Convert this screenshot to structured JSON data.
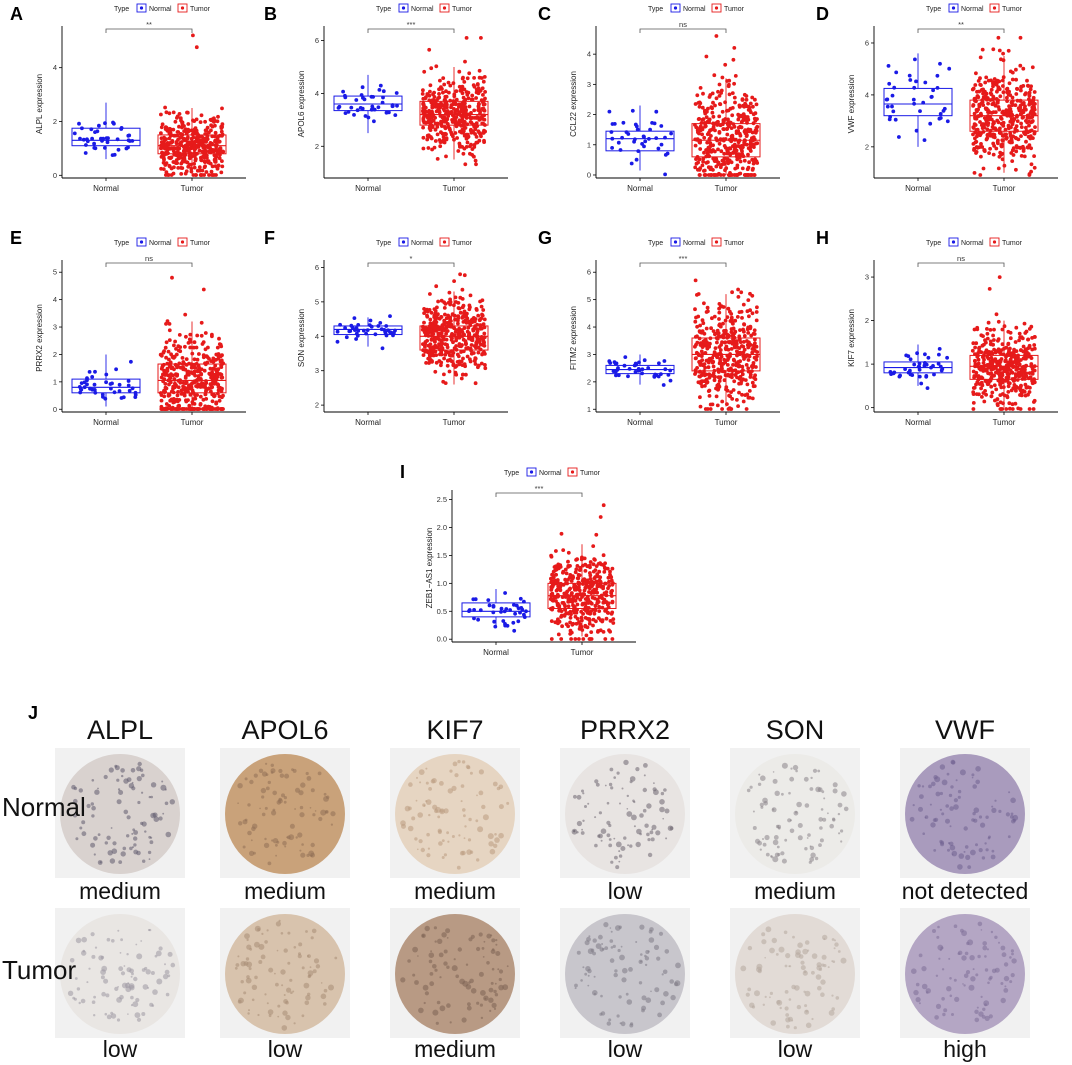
{
  "chart_data": [
    {
      "type": "boxplot",
      "panel": "A",
      "ylabel": "ALPL expression",
      "categories": [
        "Normal",
        "Tumor"
      ],
      "legend_title": "Type",
      "legend": [
        "Normal",
        "Tumor"
      ],
      "significance": "**",
      "ylim": [
        -0.1,
        5.4
      ],
      "yticks": [
        0,
        2,
        4
      ],
      "boxes": [
        {
          "group": "Normal",
          "q1": 1.1,
          "median": 1.3,
          "q3": 1.75,
          "whisker_low": 0.6,
          "whisker_high": 2.7,
          "n": 40
        },
        {
          "group": "Tumor",
          "q1": 0.8,
          "median": 1.1,
          "q3": 1.5,
          "whisker_low": 0.05,
          "whisker_high": 2.5,
          "n": 420,
          "max": 5.2
        }
      ]
    },
    {
      "type": "boxplot",
      "panel": "B",
      "ylabel": "APOL6 expression",
      "categories": [
        "Normal",
        "Tumor"
      ],
      "legend_title": "Type",
      "legend": [
        "Normal",
        "Tumor"
      ],
      "significance": "***",
      "ylim": [
        0.8,
        6.4
      ],
      "yticks": [
        2,
        4,
        6
      ],
      "boxes": [
        {
          "group": "Normal",
          "q1": 3.35,
          "median": 3.6,
          "q3": 3.9,
          "whisker_low": 2.5,
          "whisker_high": 4.7,
          "n": 40
        },
        {
          "group": "Tumor",
          "q1": 2.8,
          "median": 3.2,
          "q3": 3.7,
          "whisker_low": 1.5,
          "whisker_high": 5.0,
          "n": 420,
          "max": 6.1
        }
      ]
    },
    {
      "type": "boxplot",
      "panel": "C",
      "ylabel": "CCL22 expression",
      "categories": [
        "Normal",
        "Tumor"
      ],
      "legend_title": "Type",
      "legend": [
        "Normal",
        "Tumor"
      ],
      "significance": "ns",
      "ylim": [
        -0.1,
        4.8
      ],
      "yticks": [
        0,
        1,
        2,
        3,
        4
      ],
      "boxes": [
        {
          "group": "Normal",
          "q1": 0.8,
          "median": 1.2,
          "q3": 1.45,
          "whisker_low": 0.15,
          "whisker_high": 2.3,
          "n": 40
        },
        {
          "group": "Tumor",
          "q1": 0.6,
          "median": 1.15,
          "q3": 1.7,
          "whisker_low": 0.0,
          "whisker_high": 3.2,
          "n": 420,
          "max": 4.6
        }
      ]
    },
    {
      "type": "boxplot",
      "panel": "D",
      "ylabel": "VWF expression",
      "categories": [
        "Normal",
        "Tumor"
      ],
      "legend_title": "Type",
      "legend": [
        "Normal",
        "Tumor"
      ],
      "significance": "**",
      "ylim": [
        0.8,
        6.5
      ],
      "yticks": [
        2,
        4,
        6
      ],
      "boxes": [
        {
          "group": "Normal",
          "q1": 3.2,
          "median": 3.65,
          "q3": 4.25,
          "whisker_low": 2.0,
          "whisker_high": 5.6,
          "n": 40
        },
        {
          "group": "Tumor",
          "q1": 2.6,
          "median": 3.2,
          "q3": 3.8,
          "whisker_low": 1.0,
          "whisker_high": 5.5,
          "n": 420,
          "max": 6.2
        }
      ]
    },
    {
      "type": "boxplot",
      "panel": "E",
      "ylabel": "PRRX2 expression",
      "categories": [
        "Normal",
        "Tumor"
      ],
      "legend_title": "Type",
      "legend": [
        "Normal",
        "Tumor"
      ],
      "significance": "ns",
      "ylim": [
        -0.1,
        5.3
      ],
      "yticks": [
        0,
        1,
        2,
        3,
        4,
        5
      ],
      "boxes": [
        {
          "group": "Normal",
          "q1": 0.6,
          "median": 0.8,
          "q3": 1.1,
          "whisker_low": 0.1,
          "whisker_high": 2.0,
          "n": 40
        },
        {
          "group": "Tumor",
          "q1": 0.6,
          "median": 1.05,
          "q3": 1.65,
          "whisker_low": 0.0,
          "whisker_high": 3.2,
          "n": 420,
          "max": 4.8
        }
      ]
    },
    {
      "type": "boxplot",
      "panel": "F",
      "ylabel": "SON expression",
      "categories": [
        "Normal",
        "Tumor"
      ],
      "legend_title": "Type",
      "legend": [
        "Normal",
        "Tumor"
      ],
      "significance": "*",
      "ylim": [
        1.8,
        6.1
      ],
      "yticks": [
        2,
        3,
        4,
        5,
        6
      ],
      "boxes": [
        {
          "group": "Normal",
          "q1": 4.05,
          "median": 4.2,
          "q3": 4.3,
          "whisker_low": 3.7,
          "whisker_high": 4.55,
          "n": 40
        },
        {
          "group": "Tumor",
          "q1": 3.6,
          "median": 4.0,
          "q3": 4.3,
          "whisker_low": 2.6,
          "whisker_high": 5.3,
          "n": 420,
          "max": 5.8
        }
      ]
    },
    {
      "type": "boxplot",
      "panel": "G",
      "ylabel": "FITM2 expression",
      "categories": [
        "Normal",
        "Tumor"
      ],
      "legend_title": "Type",
      "legend": [
        "Normal",
        "Tumor"
      ],
      "significance": "***",
      "ylim": [
        0.9,
        6.3
      ],
      "yticks": [
        1,
        2,
        3,
        4,
        5,
        6
      ],
      "boxes": [
        {
          "group": "Normal",
          "q1": 2.3,
          "median": 2.45,
          "q3": 2.6,
          "whisker_low": 1.9,
          "whisker_high": 3.0,
          "n": 40
        },
        {
          "group": "Tumor",
          "q1": 2.4,
          "median": 3.0,
          "q3": 3.6,
          "whisker_low": 1.1,
          "whisker_high": 5.2,
          "n": 420,
          "max": 5.7
        }
      ]
    },
    {
      "type": "boxplot",
      "panel": "H",
      "ylabel": "KIF7 expression",
      "categories": [
        "Normal",
        "Tumor"
      ],
      "legend_title": "Type",
      "legend": [
        "Normal",
        "Tumor"
      ],
      "significance": "ns",
      "ylim": [
        -0.1,
        3.3
      ],
      "yticks": [
        0,
        1,
        2,
        3
      ],
      "boxes": [
        {
          "group": "Normal",
          "q1": 0.8,
          "median": 0.92,
          "q3": 1.05,
          "whisker_low": 0.5,
          "whisker_high": 1.45,
          "n": 40
        },
        {
          "group": "Tumor",
          "q1": 0.65,
          "median": 0.95,
          "q3": 1.2,
          "whisker_low": 0.0,
          "whisker_high": 2.0,
          "n": 420,
          "max": 3.0
        }
      ]
    },
    {
      "type": "boxplot",
      "panel": "I",
      "ylabel": "ZEB1−AS1 expression",
      "categories": [
        "Normal",
        "Tumor"
      ],
      "legend_title": "Type",
      "legend": [
        "Normal",
        "Tumor"
      ],
      "significance": "***",
      "ylim": [
        -0.05,
        2.6
      ],
      "yticks": [
        0.0,
        0.5,
        1.0,
        1.5,
        2.0,
        2.5
      ],
      "boxes": [
        {
          "group": "Normal",
          "q1": 0.4,
          "median": 0.5,
          "q3": 0.65,
          "whisker_low": 0.2,
          "whisker_high": 0.9,
          "n": 40
        },
        {
          "group": "Tumor",
          "q1": 0.55,
          "median": 0.78,
          "q3": 1.0,
          "whisker_low": 0.05,
          "whisker_high": 1.7,
          "n": 420,
          "max": 2.4
        }
      ]
    }
  ],
  "colors": {
    "normal": "#1a1ae6",
    "tumor": "#e61a1a"
  },
  "ihc": {
    "panel": "J",
    "rows": [
      "Normal",
      "Tumor"
    ],
    "genes": [
      {
        "name": "ALPL",
        "normal": "medium",
        "tumor": "low"
      },
      {
        "name": "APOL6",
        "normal": "medium",
        "tumor": "low"
      },
      {
        "name": "KIF7",
        "normal": "medium",
        "tumor": "medium"
      },
      {
        "name": "PRRX2",
        "normal": "low",
        "tumor": "low"
      },
      {
        "name": "SON",
        "normal": "medium",
        "tumor": "low"
      },
      {
        "name": "VWF",
        "normal": "not detected",
        "tumor": "high"
      }
    ]
  }
}
